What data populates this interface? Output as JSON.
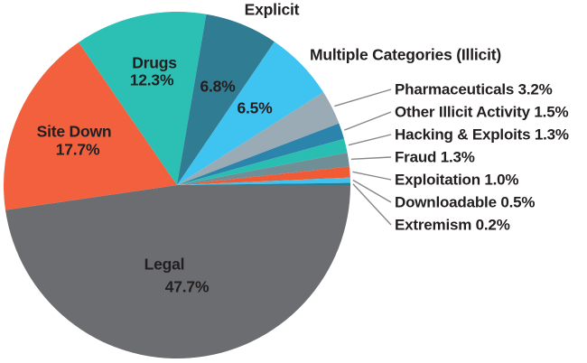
{
  "chart_data": {
    "type": "pie",
    "title": "",
    "unit": "%",
    "start_angle_deg": 0,
    "direction": "clockwise",
    "legend_position": "labels-on-and-around-pie",
    "text_color": "#231f20",
    "leader_line_color": "#85888b",
    "slices": [
      {
        "label": "Legal",
        "value": 47.7,
        "pct_text": "47.7%",
        "color": "#6c6d70",
        "callout": false
      },
      {
        "label": "Site Down",
        "value": 17.7,
        "pct_text": "17.7%",
        "color": "#f2603d",
        "callout": false
      },
      {
        "label": "Drugs",
        "value": 12.3,
        "pct_text": "12.3%",
        "color": "#2cc0b5",
        "callout": false
      },
      {
        "label": "Explicit",
        "value": 6.8,
        "pct_text": "6.8%",
        "color": "#2f7c93",
        "callout": false
      },
      {
        "label": "Multiple Categories (Illicit)",
        "value": 6.5,
        "pct_text": "6.5%",
        "color": "#3fc3f0",
        "callout": false
      },
      {
        "label": "Pharmaceuticals",
        "value": 3.2,
        "pct_text": "3.2%",
        "color": "#9aabb5",
        "callout": true
      },
      {
        "label": "Other Illicit Activity",
        "value": 1.5,
        "pct_text": "1.5%",
        "color": "#2b84ab",
        "callout": true
      },
      {
        "label": "Hacking & Exploits",
        "value": 1.3,
        "pct_text": "1.3%",
        "color": "#2abdb2",
        "callout": true
      },
      {
        "label": "Fraud",
        "value": 1.3,
        "pct_text": "1.3%",
        "color": "#6f8e96",
        "callout": true
      },
      {
        "label": "Exploitation",
        "value": 1.0,
        "pct_text": "1.0%",
        "color": "#f05a35",
        "callout": true
      },
      {
        "label": "Downloadable",
        "value": 0.5,
        "pct_text": "0.5%",
        "color": "#3fc3ee",
        "callout": true
      },
      {
        "label": "Extremism",
        "value": 0.2,
        "pct_text": "0.2%",
        "color": "#2a7b8f",
        "callout": true
      }
    ]
  }
}
